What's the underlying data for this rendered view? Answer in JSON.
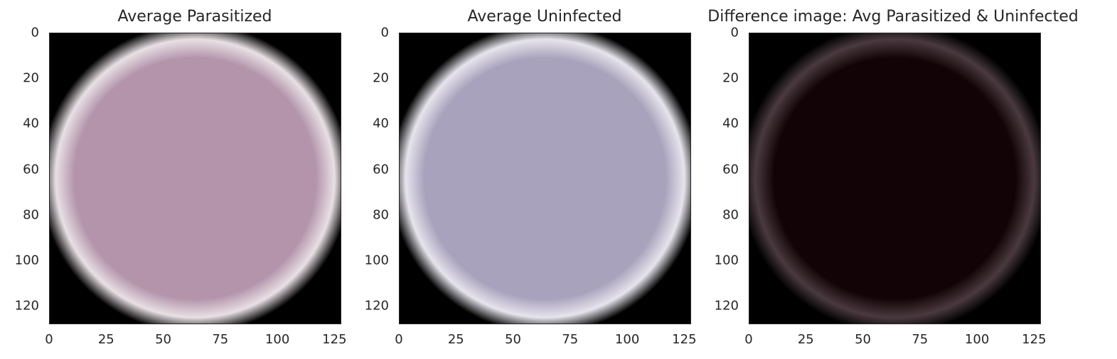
{
  "chart_data": [
    {
      "type": "heatmap",
      "title": "Average Parasitized",
      "xlabel": "",
      "ylabel": "",
      "xlim": [
        0,
        128
      ],
      "ylim": [
        128,
        0
      ],
      "xticks": [
        "0",
        "25",
        "50",
        "75",
        "100",
        "125"
      ],
      "yticks": [
        "0",
        "20",
        "40",
        "60",
        "80",
        "100",
        "120"
      ],
      "grid": false,
      "colors": {
        "background": "#000000",
        "cell": "#b394ab",
        "edge": "#e8e0e4"
      }
    },
    {
      "type": "heatmap",
      "title": "Average Uninfected",
      "xlabel": "",
      "ylabel": "",
      "xlim": [
        0,
        128
      ],
      "ylim": [
        128,
        0
      ],
      "xticks": [
        "0",
        "25",
        "50",
        "75",
        "100",
        "125"
      ],
      "yticks": [
        "0",
        "20",
        "40",
        "60",
        "80",
        "100",
        "120"
      ],
      "grid": false,
      "colors": {
        "background": "#000000",
        "cell": "#a9a2bc",
        "edge": "#e6e4ec"
      }
    },
    {
      "type": "heatmap",
      "title": "Difference image: Avg Parasitized & Uninfected",
      "xlabel": "",
      "ylabel": "",
      "xlim": [
        0,
        128
      ],
      "ylim": [
        128,
        0
      ],
      "xticks": [
        "0",
        "25",
        "50",
        "75",
        "100",
        "125"
      ],
      "yticks": [
        "0",
        "20",
        "40",
        "60",
        "80",
        "100",
        "120"
      ],
      "grid": false,
      "colors": {
        "background": "#000000",
        "cell": "#120406",
        "edge": "#4a3a40"
      }
    }
  ]
}
